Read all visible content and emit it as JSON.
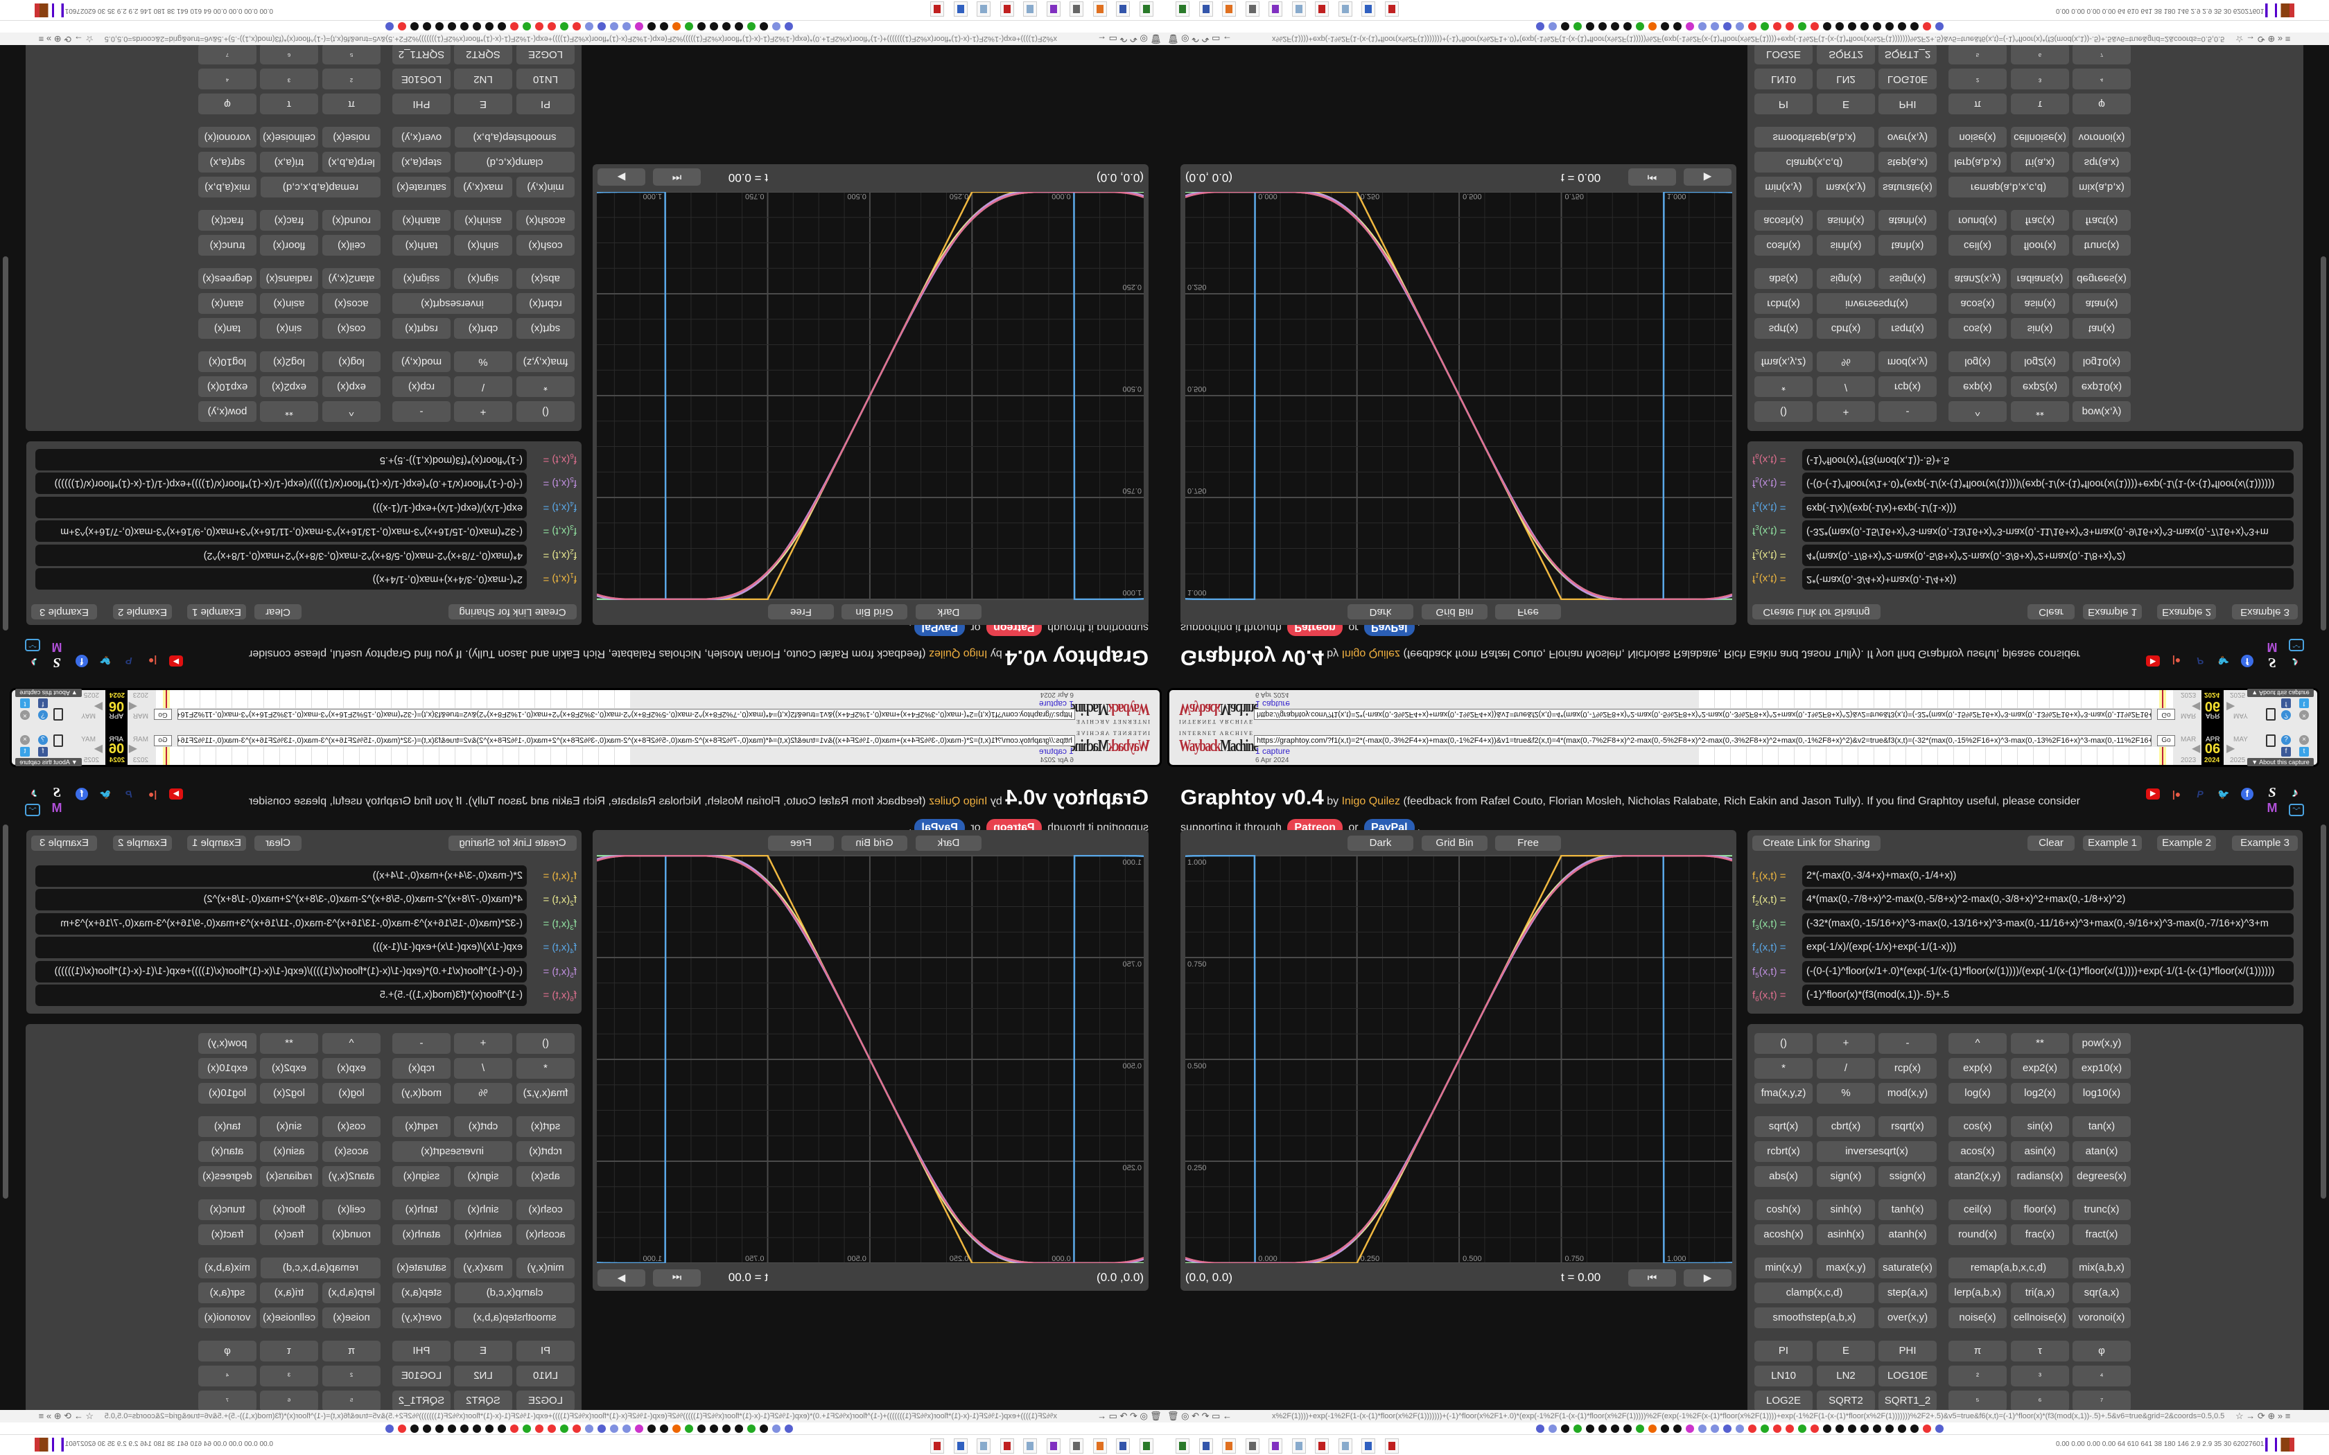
{
  "wayback": {
    "logo_top": "INTERNET ARCHIVE",
    "logo_a": "Wayback",
    "logo_b": "Machine",
    "url": "https://graphtoy.com/?f1(x,t)=2*(-max(0,-3%2F4+x)+max(0,-1%2F4+x))&v1=true&f2(x,t)=4*(max(0,-7%2F8+x)^2-max(0,-5%2F8+x)^2-max(0,-3%2F8+x)^2+max(0,-1%2F8+x)^2)&v2=true&f3(x,t)=(-32*(max(0,-15%2F16+x)^3-max(0,-13%2F16+x)^3-max(0,-11%2F16+x",
    "go": "Go",
    "captures": "1 capture",
    "date": "6 Apr 2024",
    "months": [
      "MAR",
      "APR",
      "MAY"
    ],
    "day": "06",
    "years": [
      "2023",
      "2024",
      "2025"
    ],
    "about": "▼ About this capture"
  },
  "header": {
    "title": "Graphtoy v0.4",
    "by": "by",
    "author": "Inigo Quilez",
    "credits": "(feedback from Rafæl Couto, Florian Mosleh, Nicholas Ralabate, Rich Eakin and Jason Tully). If you find Graphtoy useful, please consider",
    "support": "supporting it through",
    "patreon": "Patreon",
    "or": "or",
    "paypal": "PayPal",
    "period": "."
  },
  "social_icons": [
    "youtube-icon",
    "patreon-icon",
    "paypal-icon",
    "twitter-icon",
    "facebook-icon",
    "substack-icon",
    "tiktok-icon",
    "mastodon-icon",
    "bilibili-icon"
  ],
  "graph": {
    "buttons": [
      "Dark",
      "Grid Bin",
      "Free"
    ],
    "coords": "(0.0, 0.0)",
    "time": "t = 0.00",
    "x_range": [
      -0.17,
      1.168
    ],
    "y_range": [
      0,
      1
    ],
    "x_ticks": [
      "0.000",
      "0.250",
      "0.500",
      "0.750",
      "1.000"
    ],
    "y_ticks": [
      "0.250",
      "0.500",
      "0.750",
      "1.000"
    ],
    "grid": "on",
    "colors": [
      "#f0b840",
      "#e8e890",
      "#90e0a0",
      "#5aa8e8",
      "#c090e0",
      "#e07090"
    ]
  },
  "formulas": {
    "share": "Create Link for Sharing",
    "clear": "Clear",
    "examples": [
      "Example 1",
      "Example 2",
      "Example 3"
    ],
    "rows": [
      {
        "label": "f",
        "sub": "1",
        "args": "(x,t) =",
        "expr": "2*(-max(0,-3/4+x)+max(0,-1/4+x))"
      },
      {
        "label": "f",
        "sub": "2",
        "args": "(x,t) =",
        "expr": "4*(max(0,-7/8+x)^2-max(0,-5/8+x)^2-max(0,-3/8+x)^2+max(0,-1/8+x)^2)"
      },
      {
        "label": "f",
        "sub": "3",
        "args": "(x,t) =",
        "expr": "(-32*(max(0,-15/16+x)^3-max(0,-13/16+x)^3-max(0,-11/16+x)^3+max(0,-9/16+x)^3-max(0,-7/16+x)^3+m"
      },
      {
        "label": "f",
        "sub": "4",
        "args": "(x,t) =",
        "expr": "exp(-1/x)/(exp(-1/x)+exp(-1/(1-x)))"
      },
      {
        "label": "f",
        "sub": "5",
        "args": "(x,t) =",
        "expr": "(-(0-(-1)^floor(x/1+.0)*(exp(-1/(x-(1)*floor(x/(1))))/(exp(-1/(x-(1)*floor(x/(1))))+exp(-1/(1-(x-(1)*floor(x/(1))))))"
      },
      {
        "label": "f",
        "sub": "6",
        "args": "(x,t) =",
        "expr": "(-1)^floor(x)*(f3(mod(x,1))-.5)+.5"
      }
    ]
  },
  "keypad": {
    "groups": [
      [
        [
          "()",
          "+",
          "-",
          "^",
          "**",
          "pow(x,y)"
        ],
        [
          "*",
          "/",
          "rcp(x)",
          "exp(x)",
          "exp2(x)",
          "exp10(x)"
        ],
        [
          "fma(x,y,z)",
          "%",
          "mod(x,y)",
          "log(x)",
          "log2(x)",
          "log10(x)"
        ]
      ],
      [
        [
          "sqrt(x)",
          "cbrt(x)",
          "rsqrt(x)",
          "cos(x)",
          "sin(x)",
          "tan(x)"
        ],
        [
          "rcbrt(x)",
          "inversesqrt(x)",
          "acos(x)",
          "asin(x)",
          "atan(x)"
        ],
        [
          "abs(x)",
          "sign(x)",
          "ssign(x)",
          "atan2(x,y)",
          "radians(x)",
          "degrees(x)"
        ]
      ],
      [
        [
          "cosh(x)",
          "sinh(x)",
          "tanh(x)",
          "ceil(x)",
          "floor(x)",
          "trunc(x)"
        ],
        [
          "acosh(x)",
          "asinh(x)",
          "atanh(x)",
          "round(x)",
          "frac(x)",
          "fract(x)"
        ]
      ],
      [
        [
          "min(x,y)",
          "max(x,y)",
          "saturate(x)",
          "remap(a,b,x,c,d)",
          "mix(a,b,x)"
        ],
        [
          "clamp(x,c,d)",
          "step(a,x)",
          "lerp(a,b,x)",
          "tri(a,x)",
          "sqr(a,x)"
        ],
        [
          "smoothstep(a,b,x)",
          "over(x,y)",
          "noise(x)",
          "cellnoise(x)",
          "voronoi(x)"
        ]
      ],
      [
        [
          "PI",
          "E",
          "PHI",
          "π",
          "τ",
          "φ"
        ],
        [
          "LN10",
          "LN2",
          "LOG10E",
          "²",
          "³",
          "⁴"
        ],
        [
          "LOG2E",
          "SQRT2",
          "SQRT1_2",
          "⁵",
          "⁶",
          "⁷"
        ]
      ]
    ]
  },
  "browser": {
    "address": "x%2F(1))))+exp(-1%2F(1-(x-(1)*floor(x%2F(1)))))))+(-1)^floor(x%2F1+.0)*(exp(-1%2F(1-(x-(1)*floor(x%2F(1)))))%2F(exp(-1%2F(x-(1)*floor(x%2F(1))))+exp(-1%2F(1-(x-(1)*floor(x%2F(1)))))))%2F2+.5)&v5=true&f6(x,t)=(-1)^floor(x)*(f3(mod(x,1))-.5)+.5&v6=true&grid=2&coords=0.5,0.5,0.6669354838709677",
    "bookmark_colors": [
      "#5560d0",
      "#8090e0",
      "#111",
      "#2a2",
      "#111",
      "#111",
      "#111",
      "#111",
      "#2a2",
      "#e60",
      "#111",
      "#111",
      "#c3c",
      "#8090e0",
      "#8090e0",
      "#5560d0",
      "#8090e0",
      "#e33",
      "#2a2",
      "#e33",
      "#e33",
      "#2a2",
      "#e33",
      "#111",
      "#111",
      "#111",
      "#111",
      "#111",
      "#111",
      "#111",
      "#111",
      "#e33",
      "#5560d0"
    ],
    "tray": "0.00 0.00 0.00 0.00  64  610  641  38  180  146  2.9  2.9  35  30  62027601"
  }
}
